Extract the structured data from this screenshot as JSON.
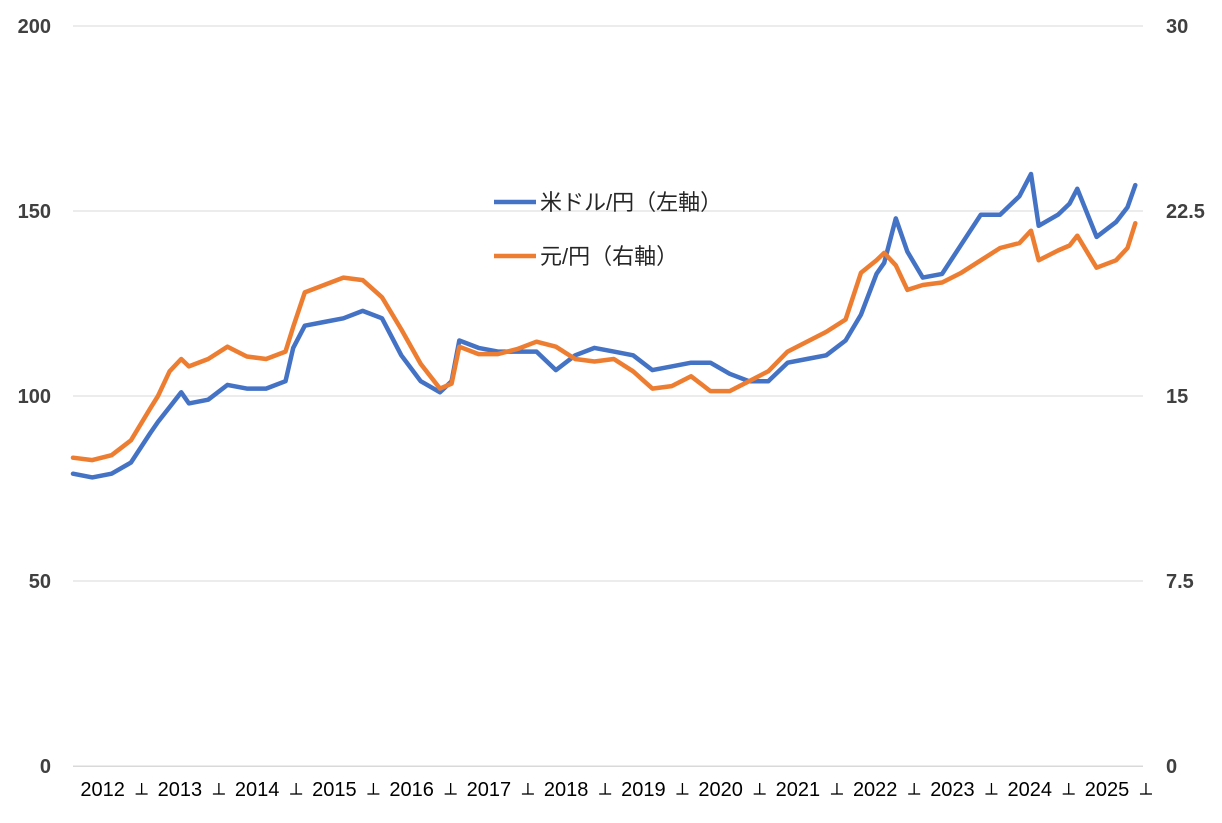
{
  "chart_data": {
    "type": "line",
    "title": "",
    "xlabel": "",
    "ylabel": "",
    "grid": true,
    "legend_position": "top-center",
    "x_ticks": [
      "2012",
      "2013",
      "2014",
      "2015",
      "2016",
      "2017",
      "2018",
      "2019",
      "2020",
      "2021",
      "2022",
      "2023",
      "2024",
      "2025"
    ],
    "y_left": {
      "ylim": [
        0,
        200
      ],
      "ticks": [
        "0",
        "50",
        "100",
        "150",
        "200"
      ]
    },
    "y_right": {
      "ylim": [
        0,
        30
      ],
      "ticks": [
        "0",
        "7.5",
        "15",
        "22.5",
        "30"
      ]
    },
    "x": [
      2012.0,
      2012.25,
      2012.5,
      2012.75,
      2013.0,
      2013.1,
      2013.25,
      2013.4,
      2013.5,
      2013.75,
      2014.0,
      2014.25,
      2014.5,
      2014.75,
      2014.85,
      2015.0,
      2015.25,
      2015.5,
      2015.75,
      2016.0,
      2016.25,
      2016.5,
      2016.75,
      2016.9,
      2017.0,
      2017.25,
      2017.5,
      2017.75,
      2018.0,
      2018.25,
      2018.5,
      2018.75,
      2019.0,
      2019.25,
      2019.5,
      2019.75,
      2020.0,
      2020.25,
      2020.5,
      2020.75,
      2021.0,
      2021.25,
      2021.5,
      2021.75,
      2022.0,
      2022.2,
      2022.4,
      2022.5,
      2022.65,
      2022.8,
      2023.0,
      2023.25,
      2023.5,
      2023.75,
      2024.0,
      2024.25,
      2024.4,
      2024.5,
      2024.75,
      2024.9,
      2025.0,
      2025.25,
      2025.5,
      2025.65,
      2025.75
    ],
    "series": [
      {
        "name": "米ドル/円（左軸）",
        "axis": "left",
        "color": "#4472C4",
        "values": [
          79,
          78,
          79,
          82,
          90,
          93,
          97,
          101,
          98,
          99,
          103,
          102,
          102,
          104,
          113,
          119,
          120,
          121,
          123,
          121,
          111,
          104,
          101,
          104,
          115,
          113,
          112,
          112,
          112,
          107,
          111,
          113,
          112,
          111,
          107,
          108,
          109,
          109,
          106,
          104,
          104,
          109,
          110,
          111,
          115,
          122,
          133,
          136,
          148,
          139,
          132,
          133,
          141,
          149,
          149,
          154,
          160,
          146,
          149,
          152,
          156,
          143,
          147,
          151,
          157
        ]
      },
      {
        "name": "元/円（右軸）",
        "axis": "right",
        "color": "#ED7D31",
        "values": [
          12.5,
          12.4,
          12.6,
          13.2,
          14.5,
          15.0,
          16.0,
          16.5,
          16.2,
          16.5,
          17.0,
          16.6,
          16.5,
          16.8,
          17.8,
          19.2,
          19.5,
          19.8,
          19.7,
          19.0,
          17.7,
          16.3,
          15.3,
          15.5,
          17.0,
          16.7,
          16.7,
          16.9,
          17.2,
          17.0,
          16.5,
          16.4,
          16.5,
          16.0,
          15.3,
          15.4,
          15.8,
          15.2,
          15.2,
          15.6,
          16.0,
          16.8,
          17.2,
          17.6,
          18.1,
          20.0,
          20.5,
          20.8,
          20.3,
          19.3,
          19.5,
          19.6,
          20.0,
          20.5,
          21.0,
          21.2,
          21.7,
          20.5,
          20.9,
          21.1,
          21.5,
          20.2,
          20.5,
          21.0,
          22.0
        ]
      }
    ]
  }
}
